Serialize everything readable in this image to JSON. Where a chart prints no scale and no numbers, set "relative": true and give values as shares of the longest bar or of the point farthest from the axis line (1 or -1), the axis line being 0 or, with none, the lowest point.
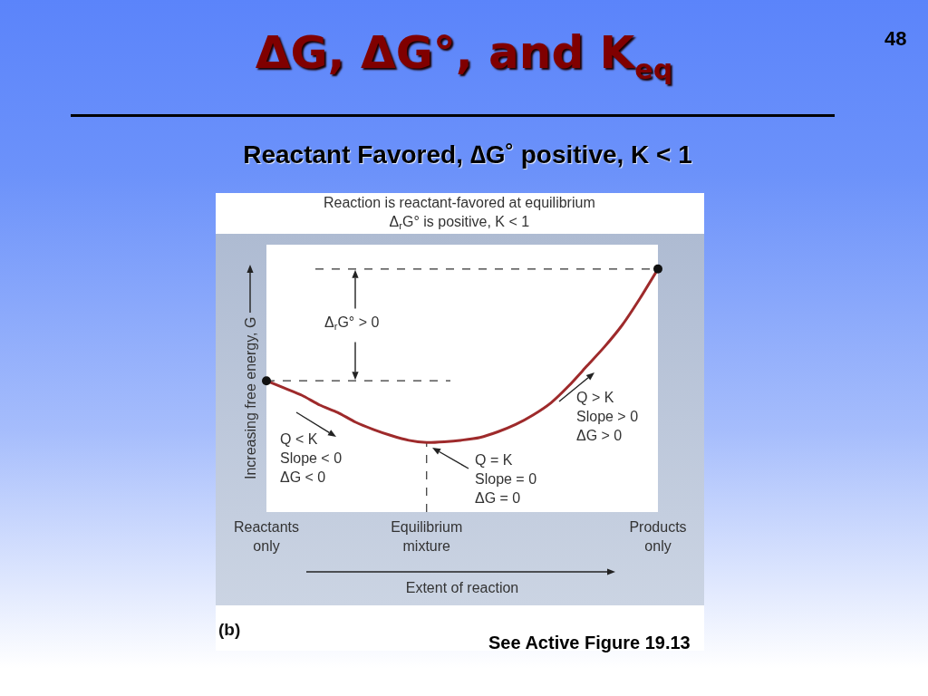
{
  "chart_data": {
    "type": "line",
    "title": "ΔG, ΔG°, and K$_{eq}$",
    "subtitle": "Reactant Favored, ∆G˚ positive, K < 1",
    "xlabel": "Extent of reaction",
    "ylabel": "Increasing free energy, G",
    "annotations": [
      "48",
      "Reaction is reactant-favored at equilibrium\nΔ$_{r}$G° is positive, K < 1",
      "Δ$_{r}$G° > 0",
      "Q < K\nSlope < 0\nΔG < 0",
      "Q = K\nSlope = 0\nΔG = 0",
      "Q > K\nSlope > 0\nΔG > 0",
      "(b)",
      "See Active Figure 19.13"
    ],
    "relative": true,
    "tick_labels": "x",
    "categories": [
      "Reactants\nonly",
      null,
      null,
      null,
      null,
      null,
      null,
      null,
      null,
      "Equilibrium\nmixture",
      null,
      null,
      null,
      null,
      null,
      null,
      null,
      null,
      null,
      null,
      null,
      null,
      "Products\nonly"
    ],
    "series": [
      {
        "type": "line",
        "color": "#9e2a2b",
        "marker": "none",
        "values": [
          0.54,
          0.51,
          0.48,
          0.44,
          0.41,
          0.37,
          0.34,
          0.315,
          0.295,
          0.286,
          0.289,
          0.296,
          0.307,
          0.33,
          0.36,
          0.4,
          0.45,
          0.52,
          0.6,
          0.68,
          0.77,
          0.88,
          1
        ]
      },
      {
        "type": "scatter",
        "color": "#111111",
        "marker": "circle",
        "x": [
          "Reactants\nonly",
          "Products\nonly"
        ],
        "values": [
          0.54,
          1
        ]
      }
    ],
    "ref_lines": [
      {
        "axis": "y",
        "value": 1,
        "color": "#333333",
        "line_style": "dashed"
      },
      {
        "axis": "y",
        "value": 0.54,
        "color": "#333333",
        "line_style": "dashed"
      },
      {
        "axis": "x",
        "value": "Equilibrium\nmixture",
        "color": "#333333",
        "line_style": "dashed"
      }
    ]
  }
}
